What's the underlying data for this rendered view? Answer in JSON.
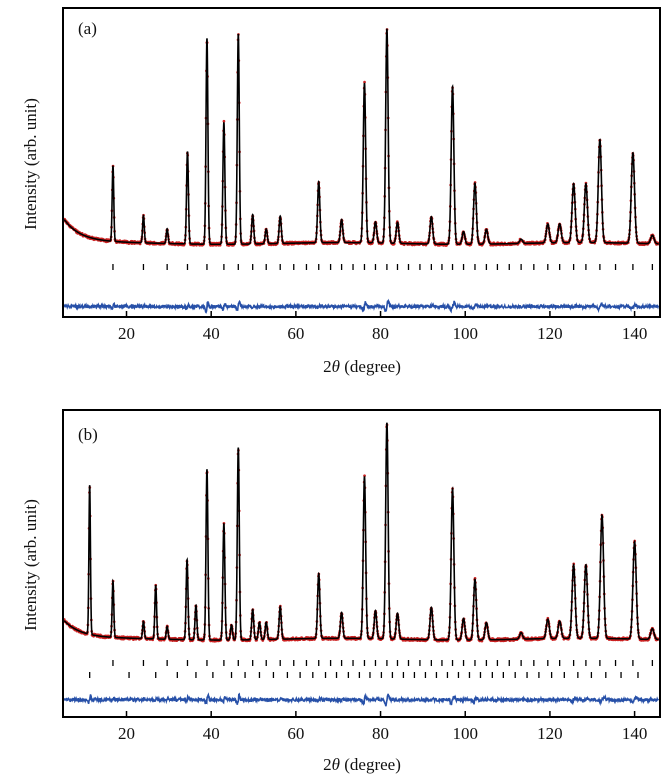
{
  "figure": {
    "panels": [
      {
        "panel_label": "(a)",
        "xlabel_prefix": "2",
        "xlabel_symbol": "θ",
        "xlabel_suffix": " (degree)",
        "ylabel": "Intensity (arb. unit)"
      },
      {
        "panel_label": "(b)",
        "xlabel_prefix": "2",
        "xlabel_symbol": "θ",
        "xlabel_suffix": " (degree)",
        "ylabel": "Intensity (arb. unit)"
      }
    ]
  },
  "colors": {
    "observed": "#cc2222",
    "calculated": "#000000",
    "difference": "#2750a8",
    "ticks": "#000000",
    "frame": "#000000"
  },
  "chart_data": [
    {
      "type": "line",
      "panel": "(a)",
      "xlabel": "2θ (degree)",
      "ylabel": "Intensity (arb. unit)",
      "xlim": [
        5,
        146
      ],
      "xticks": [
        20,
        40,
        60,
        80,
        100,
        120,
        140
      ],
      "ylim": [
        -0.35,
        1.12
      ],
      "y_ticks_labeled": false,
      "series": [
        {
          "role": "observed",
          "style": "red dots"
        },
        {
          "role": "calculated",
          "style": "black line"
        },
        {
          "role": "difference",
          "style": "blue line",
          "offset": -0.3
        }
      ],
      "background": {
        "start": 0.12,
        "floor": 0.0,
        "decay": 4.0
      },
      "peaks": [
        {
          "x": 16.8,
          "y": 0.36
        },
        {
          "x": 24.0,
          "y": 0.13
        },
        {
          "x": 29.6,
          "y": 0.07
        },
        {
          "x": 34.4,
          "y": 0.44
        },
        {
          "x": 39.0,
          "y": 0.98
        },
        {
          "x": 43.0,
          "y": 0.58
        },
        {
          "x": 46.4,
          "y": 1.0
        },
        {
          "x": 49.8,
          "y": 0.14
        },
        {
          "x": 53.0,
          "y": 0.07
        },
        {
          "x": 56.3,
          "y": 0.13
        },
        {
          "x": 65.4,
          "y": 0.29
        },
        {
          "x": 70.8,
          "y": 0.11
        },
        {
          "x": 76.2,
          "y": 0.76
        },
        {
          "x": 78.8,
          "y": 0.1
        },
        {
          "x": 81.5,
          "y": 1.02
        },
        {
          "x": 84.0,
          "y": 0.1
        },
        {
          "x": 92.0,
          "y": 0.13
        },
        {
          "x": 97.0,
          "y": 0.75
        },
        {
          "x": 99.6,
          "y": 0.06
        },
        {
          "x": 102.3,
          "y": 0.29
        },
        {
          "x": 105.0,
          "y": 0.07
        },
        {
          "x": 113.2,
          "y": 0.02
        },
        {
          "x": 119.5,
          "y": 0.09
        },
        {
          "x": 122.3,
          "y": 0.09
        },
        {
          "x": 125.6,
          "y": 0.28
        },
        {
          "x": 128.5,
          "y": 0.28
        },
        {
          "x": 131.8,
          "y": 0.49
        },
        {
          "x": 139.6,
          "y": 0.43
        },
        {
          "x": 144.2,
          "y": 0.04
        }
      ],
      "bragg_positions": [
        [
          16.8,
          24.0,
          29.6,
          34.4,
          39.0,
          43.0,
          46.4,
          49.8,
          53.0,
          56.3,
          59.5,
          62.5,
          65.4,
          68.2,
          70.8,
          73.5,
          76.2,
          78.8,
          81.5,
          84.0,
          86.6,
          89.3,
          92.0,
          94.5,
          97.0,
          99.6,
          102.3,
          105.0,
          107.6,
          110.4,
          113.2,
          116.2,
          119.5,
          122.3,
          125.6,
          128.5,
          131.8,
          135.5,
          139.6,
          144.2
        ]
      ]
    },
    {
      "type": "line",
      "panel": "(b)",
      "xlabel": "2θ (degree)",
      "ylabel": "Intensity (arb. unit)",
      "xlim": [
        5,
        146
      ],
      "xticks": [
        20,
        40,
        60,
        80,
        100,
        120,
        140
      ],
      "ylim": [
        -0.36,
        1.06
      ],
      "y_ticks_labeled": false,
      "series": [
        {
          "role": "observed",
          "style": "red dots"
        },
        {
          "role": "calculated",
          "style": "black line"
        },
        {
          "role": "difference",
          "style": "blue line",
          "offset": -0.28
        }
      ],
      "background": {
        "start": 0.09,
        "floor": 0.0,
        "decay": 4.0
      },
      "peaks": [
        {
          "x": 11.3,
          "y": 0.69
        },
        {
          "x": 16.8,
          "y": 0.26
        },
        {
          "x": 24.0,
          "y": 0.08
        },
        {
          "x": 26.9,
          "y": 0.25
        },
        {
          "x": 29.6,
          "y": 0.06
        },
        {
          "x": 34.3,
          "y": 0.37
        },
        {
          "x": 36.4,
          "y": 0.16
        },
        {
          "x": 39.0,
          "y": 0.79
        },
        {
          "x": 43.0,
          "y": 0.54
        },
        {
          "x": 44.8,
          "y": 0.07
        },
        {
          "x": 46.4,
          "y": 0.89
        },
        {
          "x": 49.8,
          "y": 0.14
        },
        {
          "x": 51.4,
          "y": 0.08
        },
        {
          "x": 53.0,
          "y": 0.08
        },
        {
          "x": 56.3,
          "y": 0.15
        },
        {
          "x": 65.4,
          "y": 0.3
        },
        {
          "x": 70.8,
          "y": 0.12
        },
        {
          "x": 76.2,
          "y": 0.75
        },
        {
          "x": 78.8,
          "y": 0.13
        },
        {
          "x": 81.5,
          "y": 1.0
        },
        {
          "x": 84.0,
          "y": 0.12
        },
        {
          "x": 92.0,
          "y": 0.15
        },
        {
          "x": 97.0,
          "y": 0.7
        },
        {
          "x": 99.6,
          "y": 0.1
        },
        {
          "x": 102.3,
          "y": 0.28
        },
        {
          "x": 105.0,
          "y": 0.08
        },
        {
          "x": 113.2,
          "y": 0.03
        },
        {
          "x": 119.5,
          "y": 0.09
        },
        {
          "x": 122.3,
          "y": 0.08
        },
        {
          "x": 125.6,
          "y": 0.34
        },
        {
          "x": 128.5,
          "y": 0.34
        },
        {
          "x": 132.3,
          "y": 0.57
        },
        {
          "x": 140.0,
          "y": 0.45
        },
        {
          "x": 144.2,
          "y": 0.05
        }
      ],
      "bragg_positions": [
        [
          16.8,
          24.0,
          29.6,
          34.4,
          39.0,
          43.0,
          46.4,
          49.8,
          53.0,
          56.3,
          59.5,
          62.5,
          65.4,
          68.2,
          70.8,
          73.5,
          76.2,
          78.8,
          81.5,
          84.0,
          86.6,
          89.3,
          92.0,
          94.5,
          97.0,
          99.6,
          102.3,
          105.0,
          107.6,
          110.4,
          113.2,
          116.2,
          119.5,
          122.3,
          125.6,
          128.5,
          131.8,
          135.5,
          139.6,
          144.2
        ],
        [
          11.3,
          20.6,
          26.9,
          32.0,
          36.4,
          40.4,
          44.8,
          48.0,
          51.4,
          54.7,
          58.0,
          61.0,
          64.0,
          67.0,
          69.6,
          72.4,
          75.0,
          77.5,
          80.2,
          82.8,
          85.4,
          88.0,
          90.6,
          93.2,
          95.8,
          98.4,
          101.0,
          103.6,
          106.4,
          109.0,
          111.8,
          114.6,
          117.4,
          120.4,
          123.4,
          126.6,
          129.8,
          133.2,
          136.8,
          140.8
        ]
      ]
    }
  ]
}
